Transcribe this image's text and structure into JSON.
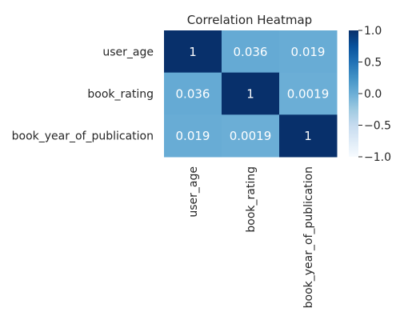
{
  "chart_data": {
    "type": "heatmap",
    "title": "Correlation Heatmap",
    "x_labels": [
      "user_age",
      "book_rating",
      "book_year_of_publication"
    ],
    "y_labels": [
      "user_age",
      "book_rating",
      "book_year_of_publication"
    ],
    "values": [
      [
        1,
        0.036,
        0.019
      ],
      [
        0.036,
        1,
        0.0019
      ],
      [
        0.019,
        0.0019,
        1
      ]
    ],
    "annotations": [
      [
        "1",
        "0.036",
        "0.019"
      ],
      [
        "0.036",
        "1",
        "0.0019"
      ],
      [
        "0.019",
        "0.0019",
        "1"
      ]
    ],
    "colormap": "Blues",
    "vmin": -1.0,
    "vmax": 1.0,
    "colorbar_ticks": [
      1.0,
      0.5,
      0.0,
      -0.5,
      -1.0
    ],
    "colorbar_tick_labels": [
      "1.0",
      "0.5",
      "0.0",
      "−0.5",
      "−1.0"
    ],
    "grid": false,
    "colorbar_position": "right"
  }
}
